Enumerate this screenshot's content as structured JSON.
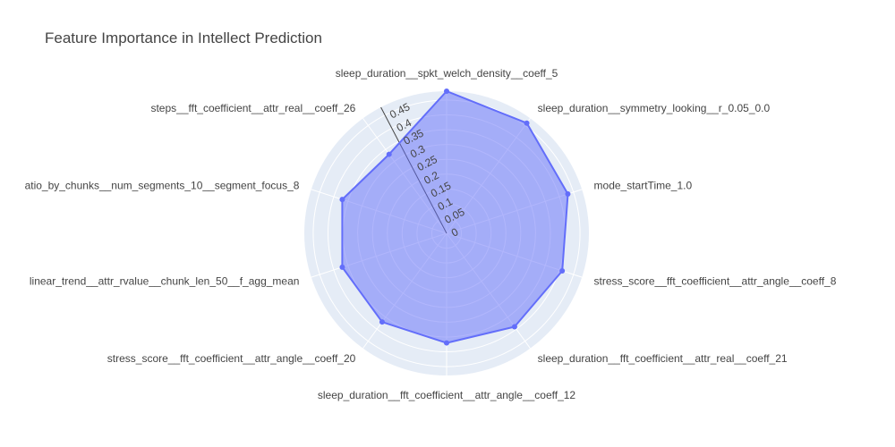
{
  "chart_data": {
    "type": "radar",
    "title": "Feature Importance in Intellect Prediction",
    "categories": [
      "sleep_duration__spkt_welch_density__coeff_5",
      "sleep_duration__symmetry_looking__r_0.05_0.0",
      "mode_startTime_1.0",
      "stress_score__fft_coefficient__attr_angle__coeff_8",
      "sleep_duration__fft_coefficient__attr_real__coeff_21",
      "sleep_duration__fft_coefficient__attr_angle__coeff_12",
      "stress_score__fft_coefficient__attr_angle__coeff_20",
      "linear_trend__attr_rvalue__chunk_len_50__f_agg_mean",
      "atio_by_chunks__num_segments_10__segment_focus_8",
      "steps__fft_coefficient__attr_real__coeff_26"
    ],
    "values": [
      0.48,
      0.46,
      0.43,
      0.41,
      0.39,
      0.37,
      0.37,
      0.37,
      0.37,
      0.33
    ],
    "radial_range": [
      0,
      0.48
    ],
    "radial_ticks": [
      "0",
      "0.05",
      "0.1",
      "0.15",
      "0.2",
      "0.25",
      "0.3",
      "0.35",
      "0.4",
      "0.45"
    ],
    "fill_color": "#636efa",
    "polar_bg": "#e5ecf6",
    "grid": true
  }
}
